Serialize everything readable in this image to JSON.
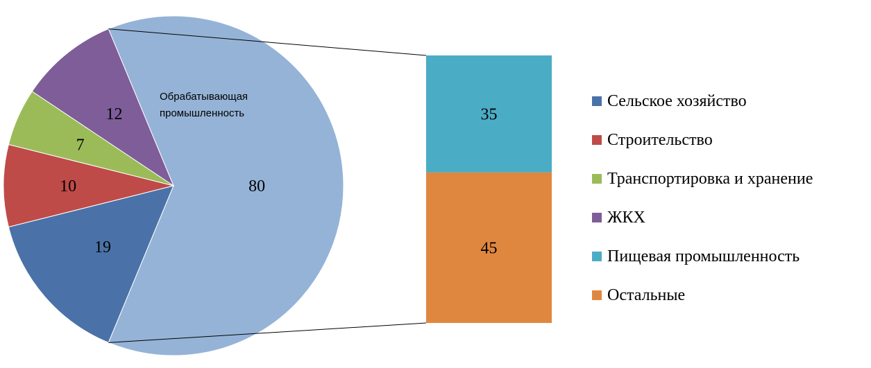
{
  "chart_data": {
    "type": "bar-of-pie",
    "pie": {
      "slices": [
        {
          "name": "Обрабатывающая промышленность",
          "value": 80,
          "color": "#95B3D7",
          "inner_label": "Обрабатывающая промышленность"
        },
        {
          "name": "Сельское хозяйство",
          "value": 19,
          "color": "#4A72A8"
        },
        {
          "name": "Строительство",
          "value": 10,
          "color": "#BE4B48"
        },
        {
          "name": "Транспортировка и хранение",
          "value": 7,
          "color": "#9BBB59"
        },
        {
          "name": "ЖКХ",
          "value": 12,
          "color": "#7E5D98"
        }
      ]
    },
    "bar": {
      "parent": "Обрабатывающая промышленность",
      "segments": [
        {
          "name": "Пищевая промышленность",
          "value": 35,
          "color": "#4BACC6"
        },
        {
          "name": "Остальные",
          "value": 45,
          "color": "#E0873F"
        }
      ]
    },
    "legend": {
      "position": "right",
      "items": [
        {
          "label": "Сельское хозяйство",
          "color": "#4A72A8"
        },
        {
          "label": "Строительство",
          "color": "#BE4B48"
        },
        {
          "label": "Транспортировка и хранение",
          "color": "#9BBB59"
        },
        {
          "label": "ЖКХ",
          "color": "#7E5D98"
        },
        {
          "label": "Пищевая промышленность",
          "color": "#4BACC6"
        },
        {
          "label": "Остальные",
          "color": "#E0873F"
        }
      ]
    }
  }
}
